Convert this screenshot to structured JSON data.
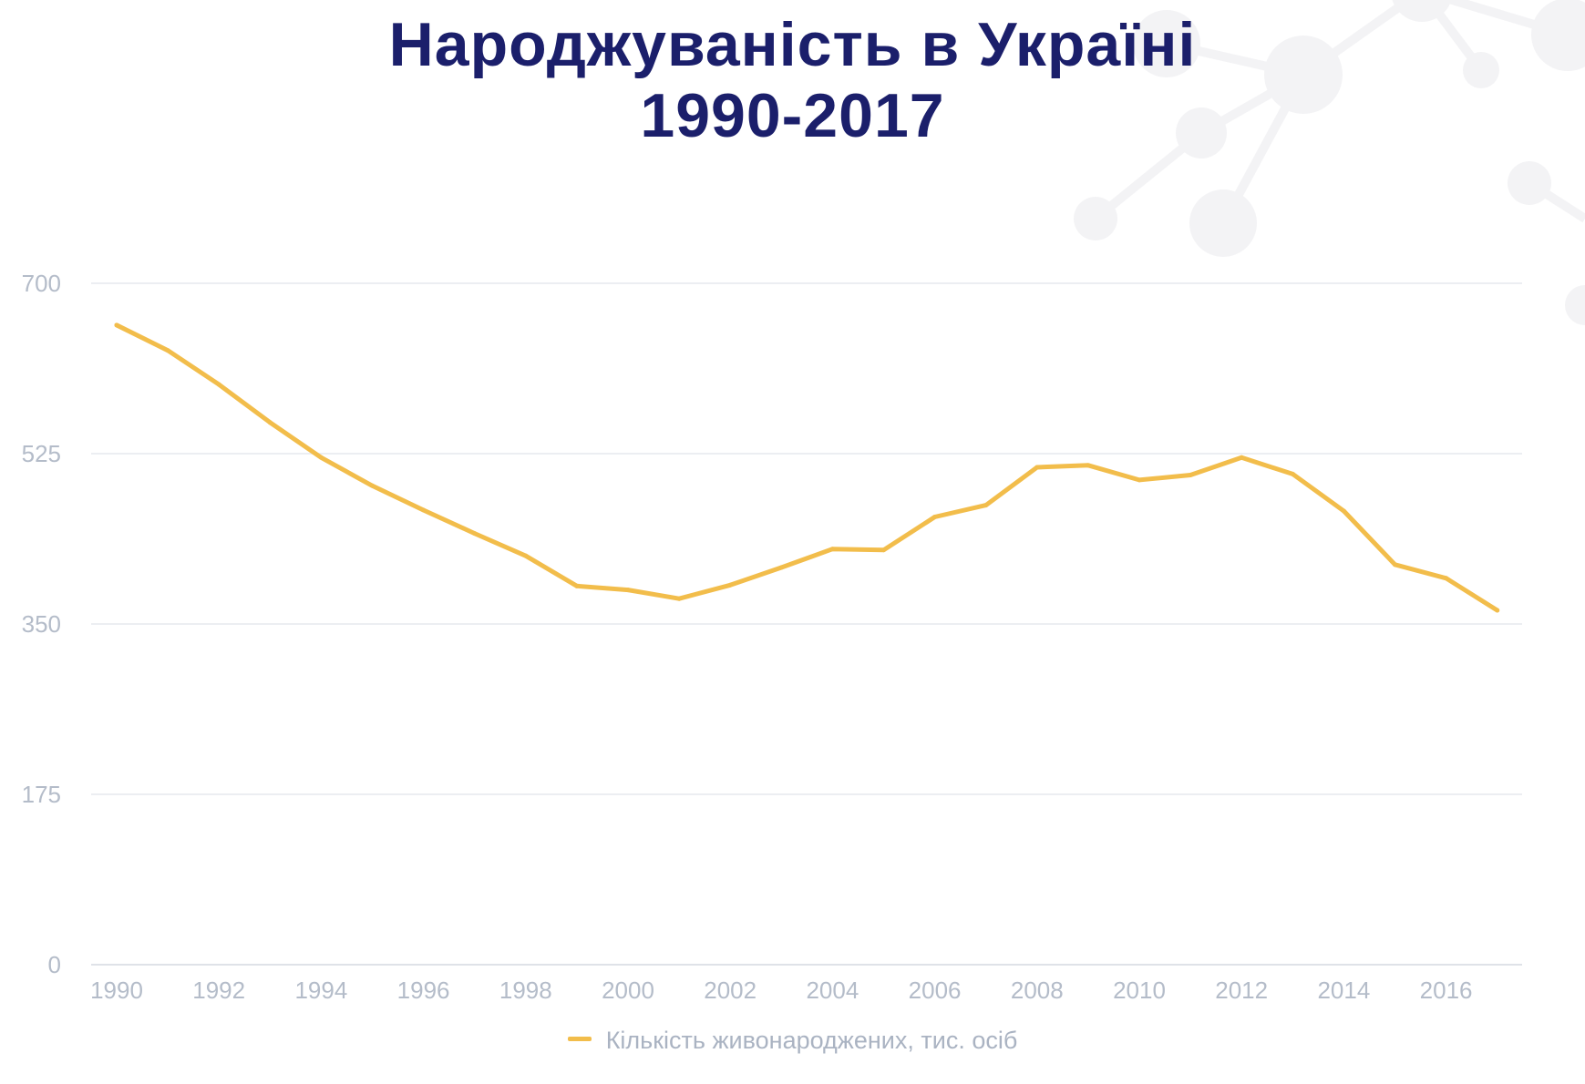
{
  "page": {
    "title_line1": "Народжуваність в Україні",
    "title_line2": "1990-2017",
    "title_color": "#1b1f6b",
    "decoration_color": "#f3f3f5"
  },
  "chart_data": {
    "type": "line",
    "title": "Народжуваність в Україні 1990-2017",
    "xlabel": "",
    "ylabel": "",
    "x": [
      1990,
      1991,
      1992,
      1993,
      1994,
      1995,
      1996,
      1997,
      1998,
      1999,
      2000,
      2001,
      2002,
      2003,
      2004,
      2005,
      2006,
      2007,
      2008,
      2009,
      2010,
      2011,
      2012,
      2013,
      2014,
      2015,
      2016,
      2017
    ],
    "x_ticks": [
      "1990",
      "1992",
      "1994",
      "1996",
      "1998",
      "2000",
      "2002",
      "2004",
      "2006",
      "2008",
      "2010",
      "2012",
      "2014",
      "2016"
    ],
    "y_ticks": [
      "0",
      "175",
      "350",
      "525",
      "700"
    ],
    "ylim": [
      0,
      700
    ],
    "xlim": [
      1990,
      2017.5
    ],
    "grid": true,
    "legend_position": "bottom-center",
    "series": [
      {
        "name": "Кількість живонароджених, тис. осіб",
        "color": "#f2bd4b",
        "values": [
          657,
          631,
          596,
          557,
          521,
          492,
          467,
          443,
          420,
          389,
          385,
          376,
          390,
          408,
          427,
          426,
          460,
          472,
          511,
          513,
          498,
          503,
          521,
          504,
          466,
          411,
          397,
          364
        ]
      }
    ]
  }
}
